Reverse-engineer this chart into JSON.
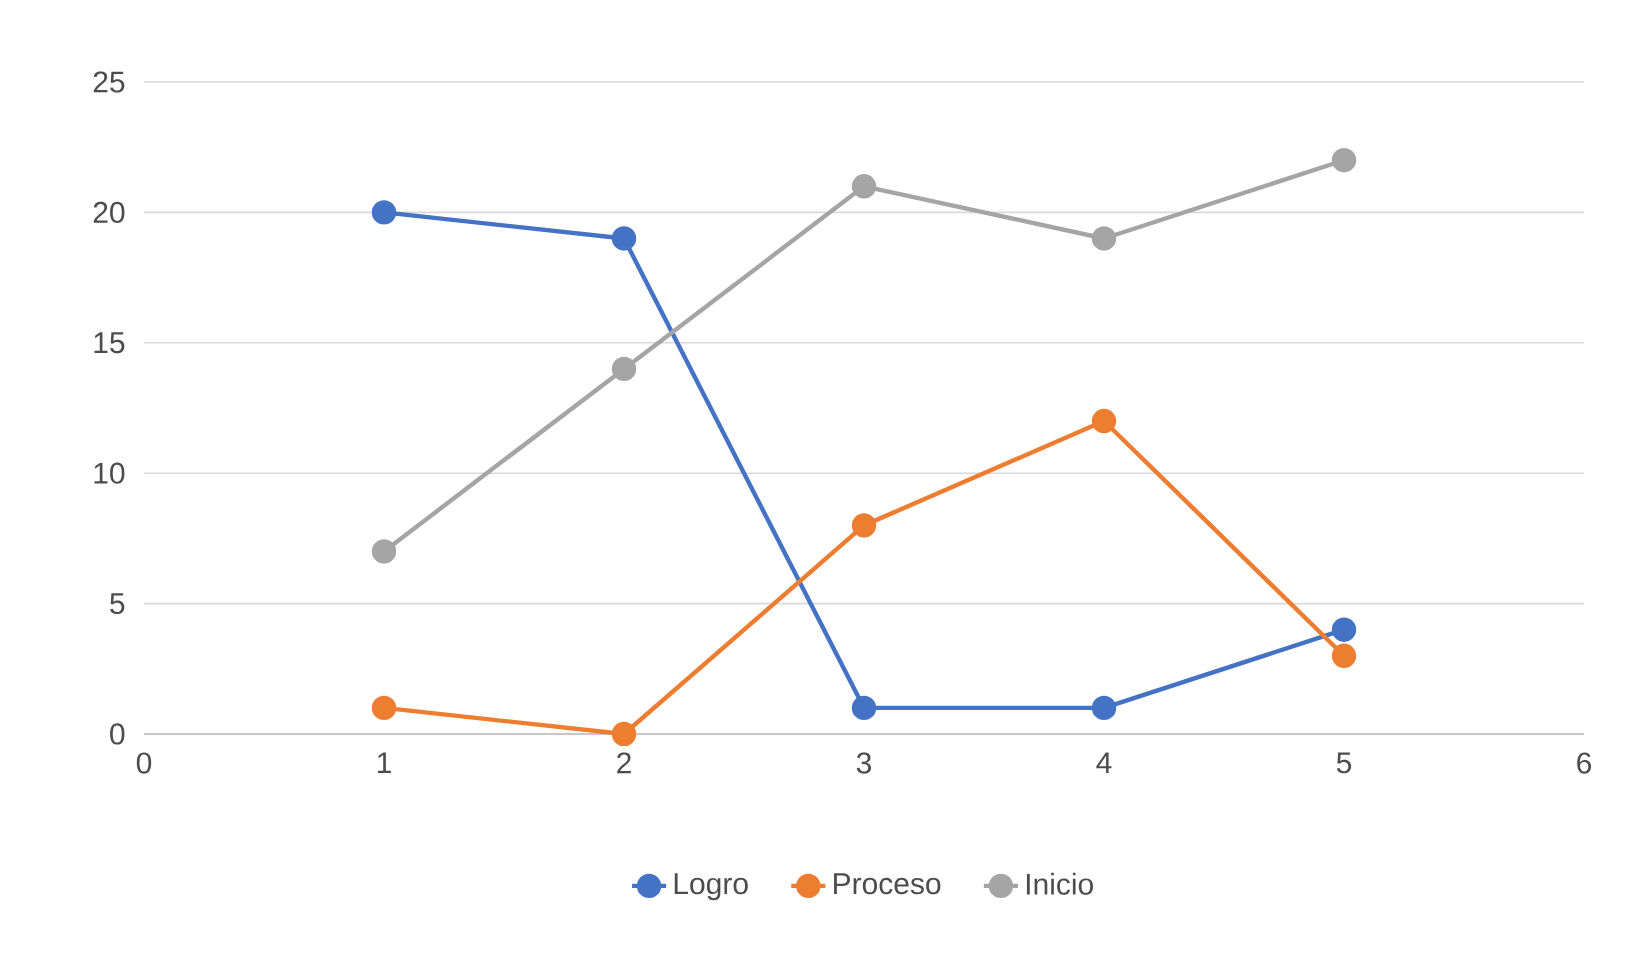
{
  "chart_data": {
    "type": "line",
    "x": [
      1,
      2,
      3,
      4,
      5
    ],
    "series": [
      {
        "name": "Logro",
        "color": "#4472c4",
        "values": [
          20,
          19,
          1,
          1,
          4
        ]
      },
      {
        "name": "Proceso",
        "color": "#ed7d31",
        "values": [
          1,
          0,
          8,
          12,
          3
        ]
      },
      {
        "name": "Inicio",
        "color": "#a5a5a5",
        "values": [
          7,
          14,
          21,
          19,
          22
        ]
      }
    ],
    "xlim": [
      0,
      6
    ],
    "xticks": [
      0,
      1,
      2,
      3,
      4,
      5,
      6
    ],
    "ylim": [
      0,
      25
    ],
    "yticks": [
      0,
      5,
      10,
      15,
      20,
      25
    ],
    "grid": "y",
    "legend": "bottom",
    "marker": "circle",
    "line_style": "solid"
  }
}
